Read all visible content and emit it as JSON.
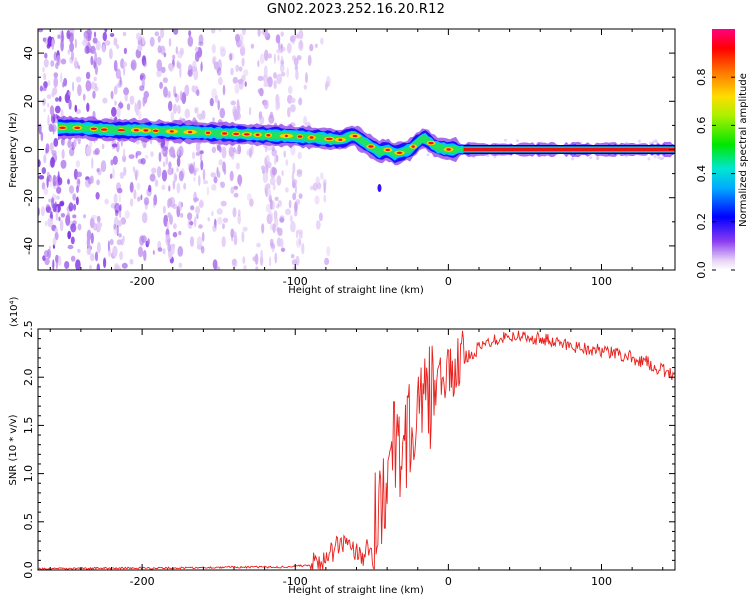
{
  "title": "GN02.2023.252.16.20.R12",
  "chart_data": [
    {
      "type": "heatmap",
      "xlabel": "Height of straight line (km)",
      "ylabel": "Frequency (Hz)",
      "xlim": [
        -268,
        148
      ],
      "ylim": [
        -50,
        50
      ],
      "xticks": [
        -200,
        -100,
        0,
        100
      ],
      "yticks": [
        -40,
        -20,
        0,
        20,
        40
      ],
      "colorbar": {
        "label": "Normalized spectral amplitude",
        "range": [
          0,
          1
        ],
        "ticks": [
          "0.0",
          "0.2",
          "0.4",
          "0.6",
          "0.8"
        ],
        "tick_values": [
          0.0,
          0.2,
          0.4,
          0.6,
          0.8
        ]
      },
      "ridge": {
        "x": [
          -255,
          -240,
          -220,
          -200,
          -180,
          -160,
          -140,
          -120,
          -100,
          -90,
          -80,
          -70,
          -62,
          -55,
          -50,
          -45,
          -40,
          -35,
          -30,
          -25,
          -20,
          -16,
          -12,
          -8,
          -4,
          0,
          10,
          40,
          80,
          120,
          148
        ],
        "frequency": [
          9,
          9,
          8,
          8,
          7.5,
          7,
          6.5,
          6,
          5.5,
          5,
          4.5,
          4,
          6,
          3,
          1,
          -1,
          0,
          -2,
          -1,
          0,
          3,
          5,
          3,
          1,
          0.5,
          0,
          0,
          0,
          0,
          0,
          0
        ]
      }
    },
    {
      "type": "line",
      "xlabel": "Height of straight line (km)",
      "ylabel": "SNR (10 * v/v)",
      "scale_label": "(x10⁴)",
      "xlim": [
        -268,
        148
      ],
      "ylim": [
        0,
        2.5
      ],
      "xticks": [
        -200,
        -100,
        0,
        100
      ],
      "yticks": [
        0.0,
        0.5,
        1.0,
        1.5,
        2.0,
        2.5
      ],
      "color": "#e8211d",
      "series": [
        {
          "x": [
            -268,
            -220,
            -180,
            -140,
            -110,
            -100,
            -90,
            -80,
            -72,
            -65,
            -60,
            -55,
            -50,
            -45,
            -40,
            -35,
            -30,
            -25,
            -20,
            -15,
            -10,
            -5,
            0,
            5,
            10,
            20,
            30,
            40,
            50,
            60,
            70,
            80,
            90,
            100,
            110,
            120,
            130,
            140,
            148
          ],
          "values": [
            0.01,
            0.02,
            0.02,
            0.03,
            0.03,
            0.04,
            0.05,
            0.1,
            0.25,
            0.3,
            0.2,
            0.15,
            0.35,
            0.7,
            1.0,
            1.25,
            1.3,
            1.45,
            1.55,
            1.7,
            1.85,
            1.95,
            2.0,
            2.1,
            2.2,
            2.3,
            2.4,
            2.43,
            2.42,
            2.4,
            2.36,
            2.33,
            2.3,
            2.27,
            2.24,
            2.2,
            2.15,
            2.07,
            2.02
          ]
        }
      ]
    }
  ]
}
